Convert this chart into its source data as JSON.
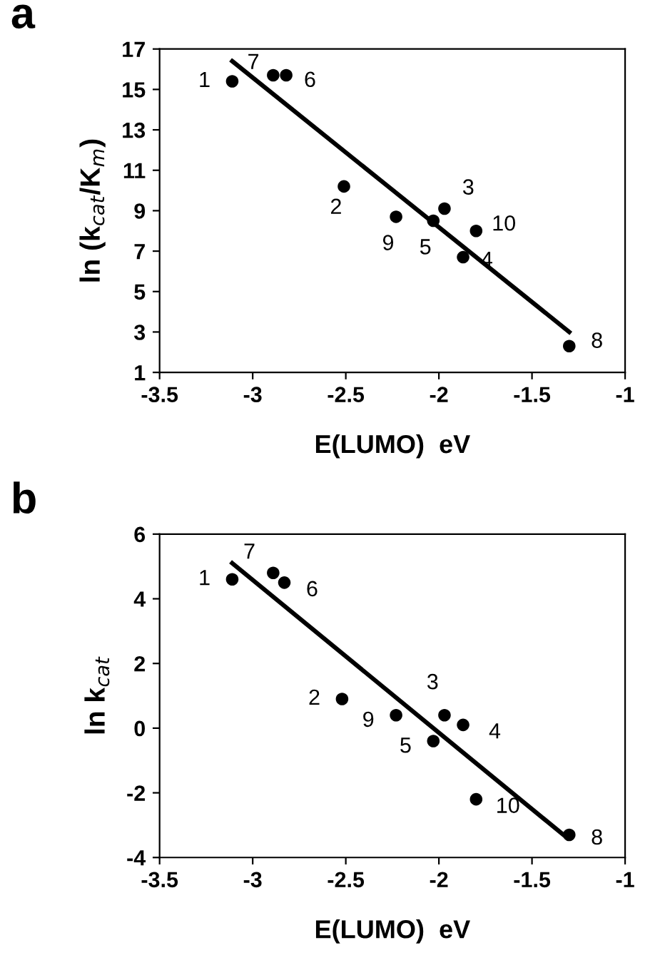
{
  "chart_data": [
    {
      "type": "scatter",
      "title": "a",
      "xlabel": "E(LUMO)  eV",
      "ylabel": "ln (k$_{cat}$/K$_{m}$)",
      "xlim": [
        -3.5,
        -1
      ],
      "xticks": [
        -3.5,
        -3,
        -2.5,
        -2,
        -1.5,
        -1
      ],
      "ylim": [
        1,
        17
      ],
      "yticks": [
        1,
        3,
        5,
        7,
        9,
        11,
        13,
        15,
        17
      ],
      "grid": false,
      "legend": false,
      "series": [
        {
          "marker": "circle",
          "color": "#000000",
          "x": [
            -3.11,
            -2.89,
            -2.82,
            -2.51,
            -2.23,
            -2.03,
            -1.97,
            -1.87,
            -1.8,
            -1.3
          ],
          "values": [
            15.4,
            15.7,
            15.7,
            10.2,
            8.7,
            8.5,
            9.1,
            6.7,
            8.0,
            2.3
          ]
        },
        {
          "type": "line",
          "color": "#000000",
          "line_style": "solid",
          "x": [
            -3.11,
            -1.3
          ],
          "values": [
            16.4,
            3.0
          ]
        }
      ],
      "annotations": [
        {
          "text": "1",
          "x": -3.11,
          "y": 15.4
        },
        {
          "text": "7",
          "x": -2.89,
          "y": 15.7
        },
        {
          "text": "6",
          "x": -2.82,
          "y": 15.7
        },
        {
          "text": "2",
          "x": -2.51,
          "y": 10.2
        },
        {
          "text": "9",
          "x": -2.23,
          "y": 8.7
        },
        {
          "text": "5",
          "x": -2.03,
          "y": 8.5
        },
        {
          "text": "3",
          "x": -1.97,
          "y": 9.1
        },
        {
          "text": "4",
          "x": -1.87,
          "y": 6.7
        },
        {
          "text": "10",
          "x": -1.8,
          "y": 8.0
        },
        {
          "text": "8",
          "x": -1.3,
          "y": 2.3
        }
      ]
    },
    {
      "type": "scatter",
      "title": "b",
      "xlabel": "E(LUMO)  eV",
      "ylabel": "ln k$_{cat}$",
      "xlim": [
        -3.5,
        -1
      ],
      "xticks": [
        -3.5,
        -3,
        -2.5,
        -2,
        -1.5,
        -1
      ],
      "ylim": [
        -4,
        6
      ],
      "yticks": [
        -4,
        -2,
        0,
        2,
        4,
        6
      ],
      "grid": false,
      "legend": false,
      "series": [
        {
          "marker": "circle",
          "color": "#000000",
          "x": [
            -3.11,
            -2.89,
            -2.83,
            -2.52,
            -2.23,
            -2.03,
            -1.97,
            -1.87,
            -1.8,
            -1.3
          ],
          "values": [
            4.6,
            4.8,
            4.5,
            0.9,
            0.4,
            -0.4,
            0.4,
            0.1,
            -2.2,
            -3.3
          ]
        },
        {
          "type": "line",
          "color": "#000000",
          "line_style": "solid",
          "x": [
            -3.11,
            -1.31
          ],
          "values": [
            5.1,
            -3.4
          ]
        }
      ],
      "annotations": [
        {
          "text": "1",
          "x": -3.11,
          "y": 4.6
        },
        {
          "text": "7",
          "x": -2.89,
          "y": 4.8
        },
        {
          "text": "6",
          "x": -2.83,
          "y": 4.5
        },
        {
          "text": "2",
          "x": -2.52,
          "y": 0.9
        },
        {
          "text": "9",
          "x": -2.23,
          "y": 0.4
        },
        {
          "text": "5",
          "x": -2.03,
          "y": -0.4
        },
        {
          "text": "3",
          "x": -1.97,
          "y": 0.4
        },
        {
          "text": "4",
          "x": -1.87,
          "y": 0.1
        },
        {
          "text": "10",
          "x": -1.8,
          "y": -2.2
        },
        {
          "text": "8",
          "x": -1.3,
          "y": -3.3
        }
      ]
    }
  ]
}
